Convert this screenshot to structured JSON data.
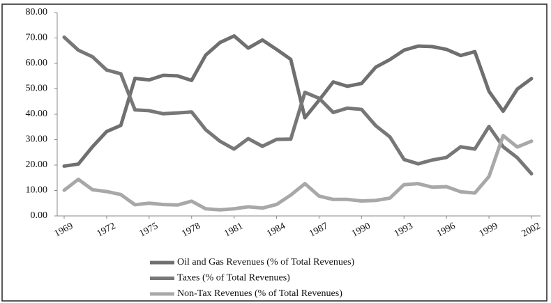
{
  "chart_data": {
    "type": "line",
    "x": [
      1969,
      1970,
      1971,
      1972,
      1973,
      1974,
      1975,
      1976,
      1977,
      1978,
      1979,
      1980,
      1981,
      1982,
      1983,
      1984,
      1985,
      1986,
      1987,
      1988,
      1989,
      1990,
      1991,
      1992,
      1993,
      1994,
      1995,
      1996,
      1997,
      1998,
      1999,
      2000,
      2001,
      2002
    ],
    "xlim": [
      1969,
      2002
    ],
    "xticks": [
      1969,
      1972,
      1975,
      1978,
      1981,
      1984,
      1987,
      1990,
      1993,
      1996,
      1999,
      2002
    ],
    "ylim": [
      0,
      80
    ],
    "yticks": [
      {
        "value": 0,
        "label": "0.00"
      },
      {
        "value": 10,
        "label": "10.00"
      },
      {
        "value": 20,
        "label": "20.00"
      },
      {
        "value": 30,
        "label": "30.00"
      },
      {
        "value": 40,
        "label": "40.00"
      },
      {
        "value": 50,
        "label": "50.00"
      },
      {
        "value": 60,
        "label": "60.00"
      },
      {
        "value": 70,
        "label": "70.00"
      },
      {
        "value": 80,
        "label": "80.00"
      }
    ],
    "series": [
      {
        "name": "Oil and Gas Revenues (% of Total Revenues)",
        "color": "#6f6f6f",
        "values": [
          19.6,
          20.4,
          27.2,
          33.2,
          35.6,
          54.1,
          53.5,
          55.3,
          55.1,
          53.3,
          63.3,
          68.2,
          70.8,
          66.0,
          69.2,
          65.5,
          61.6,
          38.6,
          45.5,
          52.7,
          51.0,
          52.1,
          58.5,
          61.5,
          65.2,
          66.8,
          66.6,
          65.5,
          63.1,
          64.6,
          49.0,
          41.2,
          49.9,
          54.0
        ]
      },
      {
        "name": "Taxes (% of Total Revenues)",
        "color": "#777777",
        "values": [
          70.3,
          65.2,
          62.6,
          57.4,
          55.9,
          41.7,
          41.4,
          40.2,
          40.5,
          40.9,
          33.9,
          29.4,
          26.3,
          30.4,
          27.4,
          30.1,
          30.2,
          48.6,
          46.3,
          40.7,
          42.4,
          41.9,
          35.5,
          31.1,
          22.2,
          20.5,
          22.0,
          23.0,
          27.2,
          26.3,
          35.2,
          27.2,
          22.9,
          16.6
        ]
      },
      {
        "name": "Non-Tax Revenues (% of Total Revenues)",
        "color": "#a8a8a8",
        "values": [
          10.1,
          14.4,
          10.3,
          9.6,
          8.4,
          4.4,
          5.0,
          4.5,
          4.3,
          5.8,
          2.8,
          2.4,
          2.8,
          3.6,
          3.1,
          4.5,
          8.2,
          12.7,
          7.8,
          6.5,
          6.5,
          5.9,
          6.1,
          7.0,
          12.3,
          12.7,
          11.3,
          11.5,
          9.5,
          9.0,
          15.5,
          31.6,
          27.1,
          29.4
        ]
      }
    ]
  }
}
